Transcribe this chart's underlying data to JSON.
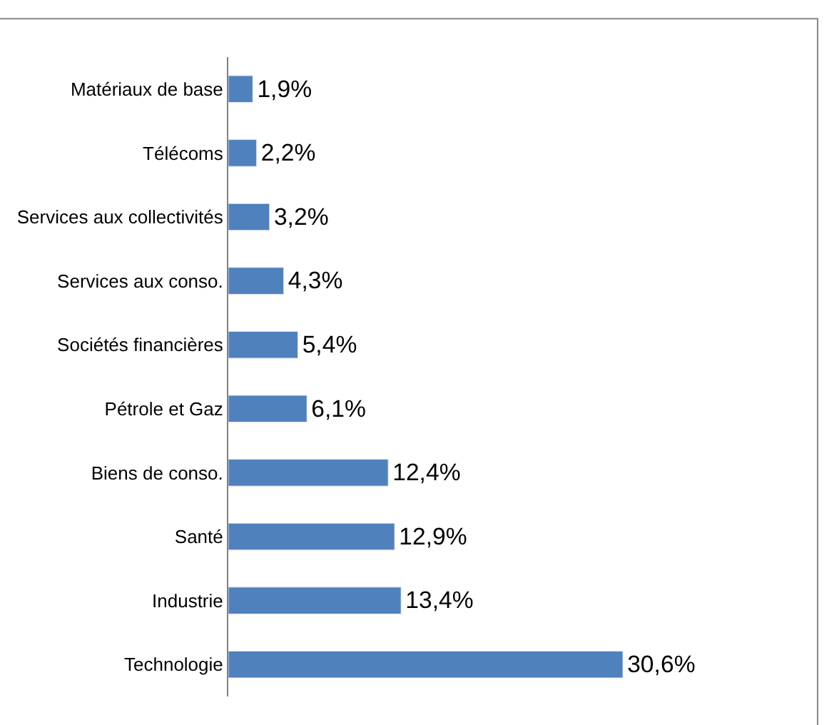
{
  "chart_data": {
    "type": "bar",
    "orientation": "horizontal",
    "categories": [
      "Matériaux de base",
      "Télécoms",
      "Services aux collectivités",
      "Services aux conso.",
      "Sociétés financières",
      "Pétrole et Gaz",
      "Biens de conso.",
      "Santé",
      "Industrie",
      "Technologie"
    ],
    "values": [
      1.9,
      2.2,
      3.2,
      4.3,
      5.4,
      6.1,
      12.4,
      12.9,
      13.4,
      30.6
    ],
    "value_labels": [
      "1,9%",
      "2,2%",
      "3,2%",
      "4,3%",
      "5,4%",
      "6,1%",
      "12,4%",
      "12,9%",
      "13,4%",
      "30,6%"
    ],
    "color": "#4f81bd",
    "legend": false
  }
}
